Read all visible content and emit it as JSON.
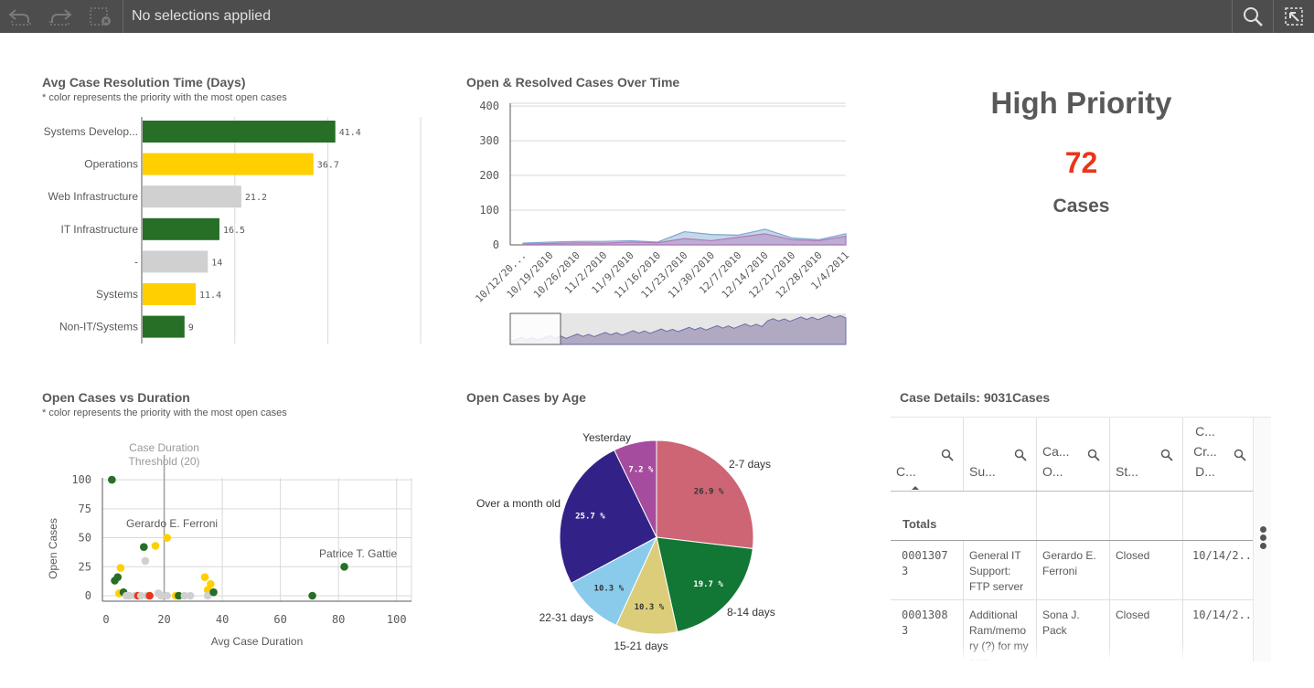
{
  "toolbar": {
    "selection_status": "No selections applied",
    "icons": [
      "step-back-icon",
      "step-forward-icon",
      "clear-selections-icon",
      "search-icon",
      "smart-search-icon"
    ]
  },
  "bar_panel": {
    "title": "Avg Case Resolution Time (Days)",
    "subtitle": "* color represents the priority with the most open cases"
  },
  "line_panel": {
    "title": "Open & Resolved Cases Over Time"
  },
  "kpi": {
    "title": "High Priority",
    "value": "72",
    "unit": "Cases",
    "value_color": "#e8361b"
  },
  "scatter_panel": {
    "title": "Open Cases vs Duration",
    "subtitle": "* color represents the priority with the most open cases"
  },
  "pie_panel": {
    "title": "Open Cases by Age"
  },
  "table_panel": {
    "title": "Case Details: 9031Cases",
    "headers": [
      "C...",
      "Su...",
      "Ca... O...",
      "St...",
      "C... Cr... D..."
    ],
    "totals_label": "Totals",
    "rows": [
      [
        "0001307 3",
        "General IT Support: FTP server",
        "Gerardo E. Ferroni",
        "Closed",
        "10/14/2..."
      ],
      [
        "0001308 3",
        "Additional Ram/memo ry (?) for my new",
        "Sona J. Pack",
        "Closed",
        "10/14/2..."
      ]
    ]
  },
  "chart_data": [
    {
      "type": "bar",
      "orientation": "horizontal",
      "categories": [
        "Systems Develop...",
        "Operations",
        "Web Infrastructure",
        "IT Infrastructure",
        "-",
        "Systems",
        "Non-IT/Systems"
      ],
      "values": [
        41.4,
        36.7,
        21.2,
        16.5,
        14,
        11.4,
        9
      ],
      "value_labels": [
        "41.4",
        "36.7",
        "21.2",
        "16.5",
        "14",
        "11.4",
        "9"
      ],
      "colors": [
        "#276e27",
        "#ffcf02",
        "#d0d0d0",
        "#276e27",
        "#d0d0d0",
        "#ffcf02",
        "#276e27"
      ],
      "xlim": [
        0,
        60
      ],
      "grid": true
    },
    {
      "type": "area",
      "x": [
        "10/12/20...",
        "10/19/2010",
        "10/26/2010",
        "11/2/2010",
        "11/9/2010",
        "11/16/2010",
        "11/23/2010",
        "11/30/2010",
        "12/7/2010",
        "12/14/2010",
        "12/21/2010",
        "12/28/2010",
        "1/4/2011"
      ],
      "series": [
        {
          "values": [
            5,
            8,
            10,
            10,
            12,
            8,
            38,
            30,
            28,
            45,
            20,
            15,
            32
          ],
          "color": "#7fa6cf"
        },
        {
          "values": [
            2,
            4,
            6,
            5,
            8,
            6,
            18,
            12,
            22,
            32,
            15,
            12,
            25
          ],
          "color": "#b07ab8"
        }
      ],
      "yticks": [
        0,
        100,
        200,
        300,
        400
      ],
      "ylim": [
        0,
        400
      ],
      "grid": true,
      "mini_chart": true
    },
    {
      "type": "scatter",
      "xlabel": "Avg Case Duration",
      "ylabel": "Open Cases",
      "xticks": [
        0,
        20,
        40,
        60,
        80,
        100
      ],
      "yticks": [
        0,
        25,
        50,
        75,
        100
      ],
      "xlim": [
        0,
        100
      ],
      "ylim": [
        0,
        100
      ],
      "reference_line": {
        "x": 20,
        "label": "Case Duration Threshold (20)"
      },
      "annotations": [
        {
          "text": "Gerardo E. Ferroni",
          "x": 21,
          "y": 50
        },
        {
          "text": "Patrice T. Gattie",
          "x": 82,
          "y": 25
        }
      ],
      "points": [
        {
          "x": 2,
          "y": 100,
          "color": "#276e27"
        },
        {
          "x": 3,
          "y": 13,
          "color": "#276e27"
        },
        {
          "x": 4,
          "y": 16,
          "color": "#276e27"
        },
        {
          "x": 5,
          "y": 24,
          "color": "#ffcf02"
        },
        {
          "x": 4.5,
          "y": 2,
          "color": "#ffcf02"
        },
        {
          "x": 6,
          "y": 3,
          "color": "#276e27"
        },
        {
          "x": 7,
          "y": 0,
          "color": "#d0d0d0"
        },
        {
          "x": 8,
          "y": 0,
          "color": "#d0d0d0"
        },
        {
          "x": 10,
          "y": 0,
          "color": "#d0d0d0"
        },
        {
          "x": 11,
          "y": 0,
          "color": "#e8361b"
        },
        {
          "x": 12,
          "y": 0,
          "color": "#d0d0d0"
        },
        {
          "x": 13,
          "y": 42,
          "color": "#276e27"
        },
        {
          "x": 13.5,
          "y": 30,
          "color": "#d0d0d0"
        },
        {
          "x": 14,
          "y": 0,
          "color": "#d0d0d0"
        },
        {
          "x": 15,
          "y": 0,
          "color": "#e8361b"
        },
        {
          "x": 17,
          "y": 43,
          "color": "#ffcf02"
        },
        {
          "x": 18,
          "y": 2,
          "color": "#d0d0d0"
        },
        {
          "x": 19,
          "y": 0,
          "color": "#d0d0d0"
        },
        {
          "x": 21,
          "y": 50,
          "color": "#ffcf02"
        },
        {
          "x": 21,
          "y": 0,
          "color": "#d0d0d0"
        },
        {
          "x": 24,
          "y": 0,
          "color": "#ffcf02"
        },
        {
          "x": 25,
          "y": 0,
          "color": "#276e27"
        },
        {
          "x": 27,
          "y": 0,
          "color": "#d0d0d0"
        },
        {
          "x": 29,
          "y": 0,
          "color": "#d0d0d0"
        },
        {
          "x": 34,
          "y": 16,
          "color": "#ffcf02"
        },
        {
          "x": 35,
          "y": 5,
          "color": "#ffcf02"
        },
        {
          "x": 35,
          "y": 0,
          "color": "#d0d0d0"
        },
        {
          "x": 36,
          "y": 10,
          "color": "#ffcf02"
        },
        {
          "x": 37,
          "y": 3,
          "color": "#276e27"
        },
        {
          "x": 71,
          "y": 0,
          "color": "#276e27"
        },
        {
          "x": 82,
          "y": 25,
          "color": "#276e27"
        }
      ]
    },
    {
      "type": "pie",
      "slices": [
        {
          "label": "2-7 days",
          "value": 26.9,
          "value_label": "26.9 %",
          "color": "#cd6574"
        },
        {
          "label": "8-14 days",
          "value": 19.7,
          "value_label": "19.7 %",
          "color": "#127735"
        },
        {
          "label": "15-21 days",
          "value": 10.3,
          "value_label": "10.3 %",
          "color": "#dbcd7a"
        },
        {
          "label": "22-31 days",
          "value": 10.3,
          "value_label": "10.3 %",
          "color": "#8acbec"
        },
        {
          "label": "Over a month old",
          "value": 25.7,
          "value_label": "25.7 %",
          "color": "#322287"
        },
        {
          "label": "Yesterday",
          "value": 7.2,
          "value_label": "7.2 %",
          "color": "#a64c9e"
        }
      ]
    }
  ]
}
